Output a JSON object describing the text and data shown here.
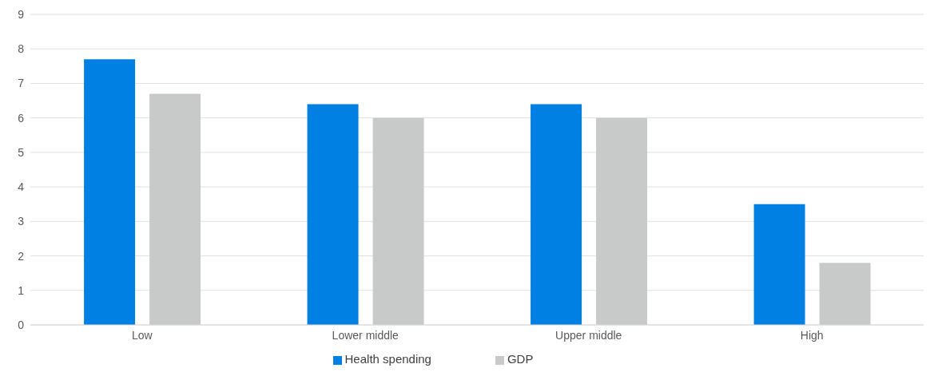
{
  "chart_data": {
    "type": "bar",
    "categories": [
      "Low",
      "Lower middle",
      "Upper middle",
      "High"
    ],
    "series": [
      {
        "name": "Health spending",
        "color": "#0080e3",
        "values": [
          7.7,
          6.4,
          6.4,
          3.5
        ]
      },
      {
        "name": "GDP",
        "color": "#c8caca",
        "values": [
          6.7,
          6.0,
          6.0,
          1.8
        ]
      }
    ],
    "ylim": [
      0,
      9
    ],
    "yticks": [
      0,
      1,
      2,
      3,
      4,
      5,
      6,
      7,
      8,
      9
    ],
    "grid": "y",
    "legend": "bottom"
  }
}
